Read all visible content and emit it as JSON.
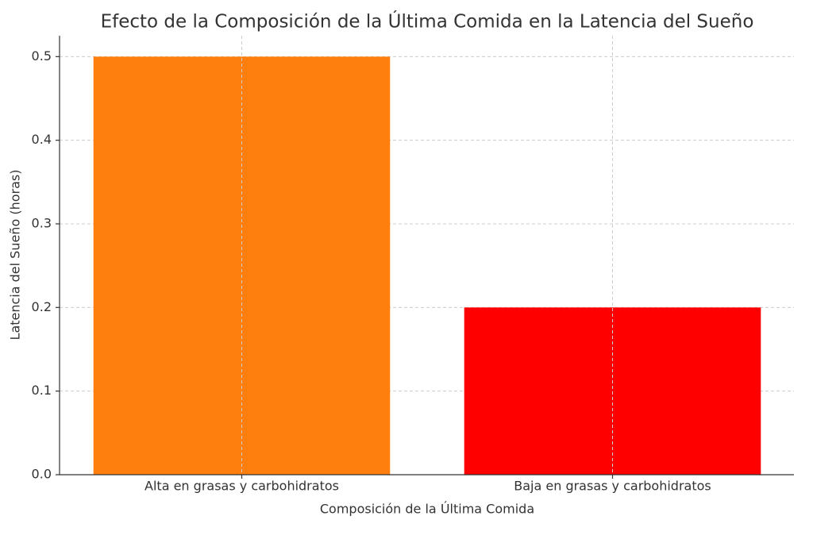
{
  "chart_data": {
    "type": "bar",
    "title": "Efecto de la Composición de la Última Comida en la Latencia del Sueño",
    "x_label": "Composición de la Última Comida",
    "y_label": "Latencia del Sueño (horas)",
    "categories": [
      "Alta en grasas y carbohidratos",
      "Baja en grasas y carbohidratos"
    ],
    "values": [
      0.5,
      0.2
    ],
    "colors": [
      "#ff7f0e",
      "#ff0000"
    ],
    "ylim": [
      0,
      0.525
    ],
    "yticks": [
      {
        "value": 0,
        "label": "0.0"
      },
      0.1,
      0.2,
      0.3,
      0.4,
      0.5
    ],
    "grid": true
  }
}
